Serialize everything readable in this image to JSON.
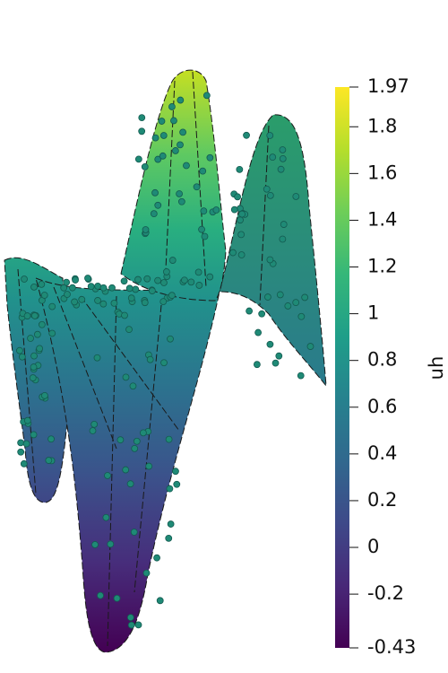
{
  "colorbar": {
    "title": "uh",
    "range": [
      -0.43,
      1.97
    ],
    "ticks": [
      1.97,
      1.8,
      1.6,
      1.4,
      1.2,
      1,
      0.8,
      0.6,
      0.4,
      0.2,
      0,
      -0.2,
      -0.43
    ],
    "colors": [
      "#440154",
      "#482878",
      "#3e4989",
      "#31688e",
      "#26828e",
      "#1f9e89",
      "#35b779",
      "#6ece58",
      "#b5de2b",
      "#fde725"
    ]
  }
}
